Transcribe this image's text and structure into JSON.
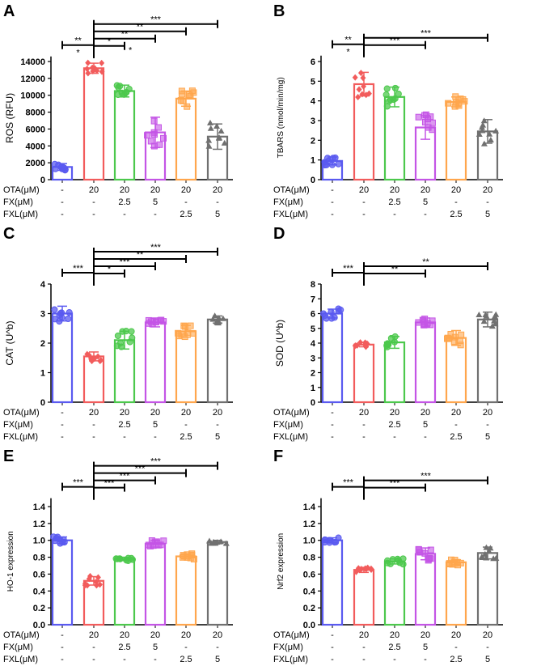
{
  "groups": {
    "row_labels": [
      "OTA(μM)",
      "FX(μM)",
      "FXL(μM)"
    ],
    "rows": [
      [
        "-",
        "20",
        "20",
        "20",
        "20",
        "20"
      ],
      [
        "-",
        "-",
        "2.5",
        "5",
        "-",
        "-"
      ],
      [
        "-",
        "-",
        "-",
        "-",
        "2.5",
        "5"
      ]
    ]
  },
  "colors": [
    "#5a5af0",
    "#f25c5c",
    "#4cc84c",
    "#c455e6",
    "#ffa64d",
    "#707070"
  ],
  "markers": [
    "circle",
    "diamond",
    "circle",
    "square",
    "square",
    "triangle"
  ],
  "chart_data": [
    {
      "type": "bar",
      "letter": "A",
      "ylabel": "ROS (RFU)",
      "ylim": [
        0,
        14600
      ],
      "ticks": [
        0,
        2000,
        4000,
        6000,
        8000,
        10000,
        12000,
        14000
      ],
      "tick_decimals": 0,
      "values": [
        1500,
        13200,
        10500,
        5600,
        9600,
        5100
      ],
      "errors": [
        400,
        600,
        700,
        1800,
        900,
        1500
      ],
      "brackets": [
        {
          "from": 0,
          "to": 1,
          "label": "**",
          "note_below": "*"
        },
        {
          "from": 1,
          "to": 2,
          "label": "*",
          "note_right": "*"
        },
        {
          "from": 1,
          "to": 3,
          "label": "**"
        },
        {
          "from": 1,
          "to": 4,
          "label": "**"
        },
        {
          "from": 1,
          "to": 5,
          "label": "***"
        }
      ]
    },
    {
      "type": "bar",
      "letter": "B",
      "ylabel": "TBARS (nmol/min/mg)",
      "ylim": [
        0,
        6.3
      ],
      "ticks": [
        0,
        1,
        2,
        3,
        4,
        5,
        6
      ],
      "tick_decimals": 0,
      "values": [
        0.95,
        4.85,
        4.2,
        2.65,
        3.95,
        2.45
      ],
      "errors": [
        0.2,
        0.6,
        0.5,
        0.6,
        0.25,
        0.6
      ],
      "brackets": [
        {
          "from": 0,
          "to": 1,
          "label": "**",
          "note_below": "*"
        },
        {
          "from": 1,
          "to": 3,
          "label": "***"
        },
        {
          "from": 1,
          "to": 5,
          "label": "***"
        }
      ]
    },
    {
      "type": "bar",
      "letter": "C",
      "ylabel": "CAT (U^b)",
      "ylim": [
        0,
        4
      ],
      "ticks": [
        0,
        1,
        2,
        3,
        4
      ],
      "tick_decimals": 0,
      "values": [
        3.0,
        1.55,
        2.1,
        2.7,
        2.4,
        2.8
      ],
      "errors": [
        0.25,
        0.15,
        0.3,
        0.15,
        0.2,
        0.12
      ],
      "brackets": [
        {
          "from": 0,
          "to": 1,
          "label": "***"
        },
        {
          "from": 1,
          "to": 2,
          "label": "*"
        },
        {
          "from": 1,
          "to": 3,
          "label": "***"
        },
        {
          "from": 1,
          "to": 4,
          "label": "**"
        },
        {
          "from": 1,
          "to": 5,
          "label": "***"
        }
      ]
    },
    {
      "type": "bar",
      "letter": "D",
      "ylabel": "SOD (U^b)",
      "ylim": [
        0,
        8
      ],
      "ticks": [
        0,
        1,
        2,
        3,
        4,
        5,
        6,
        7,
        8
      ],
      "tick_decimals": 0,
      "values": [
        6.0,
        3.9,
        4.05,
        5.4,
        4.35,
        5.6
      ],
      "errors": [
        0.3,
        0.15,
        0.4,
        0.3,
        0.5,
        0.5
      ],
      "brackets": [
        {
          "from": 0,
          "to": 1,
          "label": "***"
        },
        {
          "from": 1,
          "to": 3,
          "label": "**"
        },
        {
          "from": 1,
          "to": 5,
          "label": "**"
        }
      ]
    },
    {
      "type": "bar",
      "letter": "E",
      "ylabel": "HO-1 expression",
      "ylim": [
        0,
        1.5
      ],
      "ticks": [
        0,
        0.2,
        0.4,
        0.6,
        0.8,
        1.0,
        1.2,
        1.4
      ],
      "tick_decimals": 1,
      "values": [
        1.0,
        0.52,
        0.78,
        0.96,
        0.81,
        0.98
      ],
      "errors": [
        0.04,
        0.05,
        0.02,
        0.04,
        0.03,
        0.02
      ],
      "brackets": [
        {
          "from": 0,
          "to": 1,
          "label": "***"
        },
        {
          "from": 1,
          "to": 2,
          "label": "***"
        },
        {
          "from": 1,
          "to": 3,
          "label": "***"
        },
        {
          "from": 1,
          "to": 4,
          "label": "***"
        },
        {
          "from": 1,
          "to": 5,
          "label": "***"
        }
      ]
    },
    {
      "type": "bar",
      "letter": "F",
      "ylabel": "Nrf2 expression",
      "ylim": [
        0,
        1.5
      ],
      "ticks": [
        0,
        0.2,
        0.4,
        0.6,
        0.8,
        1.0,
        1.2,
        1.4
      ],
      "tick_decimals": 1,
      "values": [
        1.0,
        0.65,
        0.75,
        0.84,
        0.74,
        0.85
      ],
      "errors": [
        0.03,
        0.03,
        0.03,
        0.07,
        0.03,
        0.07
      ],
      "brackets": [
        {
          "from": 0,
          "to": 1,
          "label": "***"
        },
        {
          "from": 1,
          "to": 3,
          "label": "***"
        },
        {
          "from": 1,
          "to": 5,
          "label": "***"
        }
      ]
    }
  ]
}
